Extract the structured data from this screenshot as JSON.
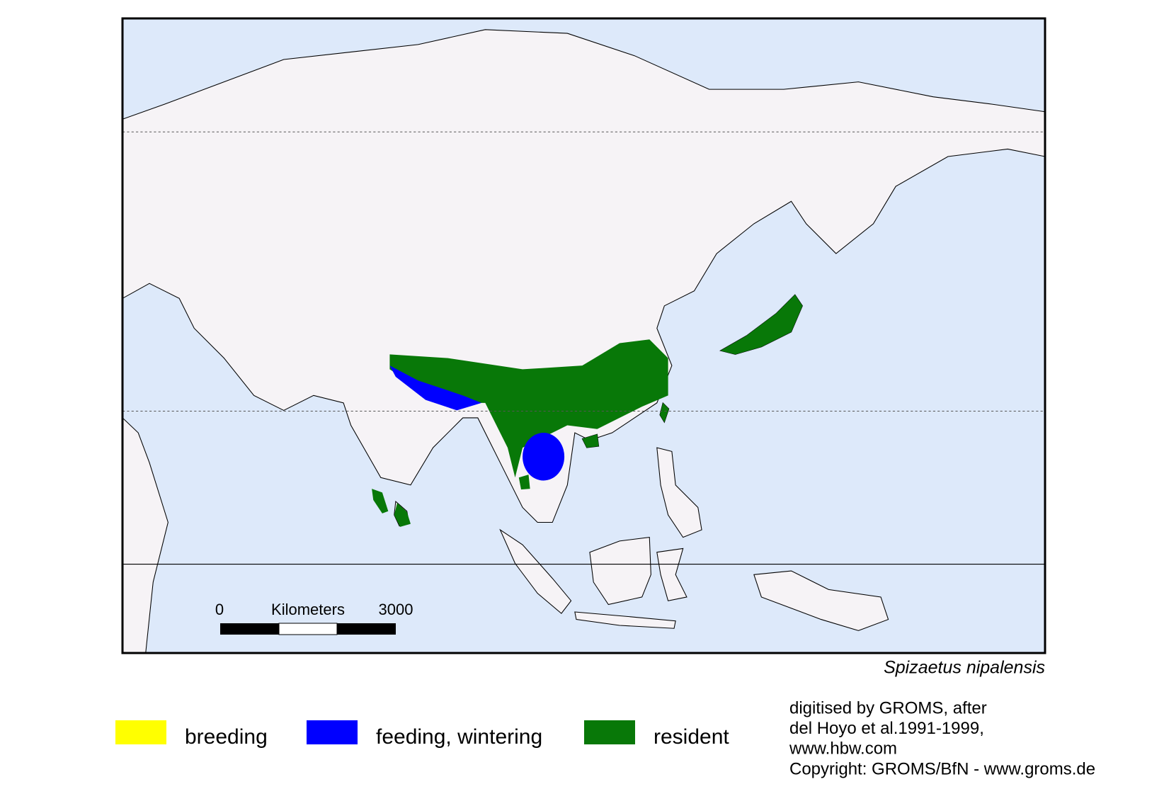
{
  "map": {
    "scale_bar": {
      "start": "0",
      "unit": "Kilometers",
      "end": "3000"
    },
    "species": "Spizaetus nipalensis",
    "legend": [
      {
        "label": "breeding",
        "color": "#ffff00"
      },
      {
        "label": "feeding, wintering",
        "color": "#0000ff"
      },
      {
        "label": "resident",
        "color": "#087808"
      }
    ],
    "credits": [
      "digitised by GROMS, after",
      "del Hoyo et al.1991-1999,",
      "www.hbw.com",
      "Copyright: GROMS/BfN - www.groms.de"
    ]
  }
}
